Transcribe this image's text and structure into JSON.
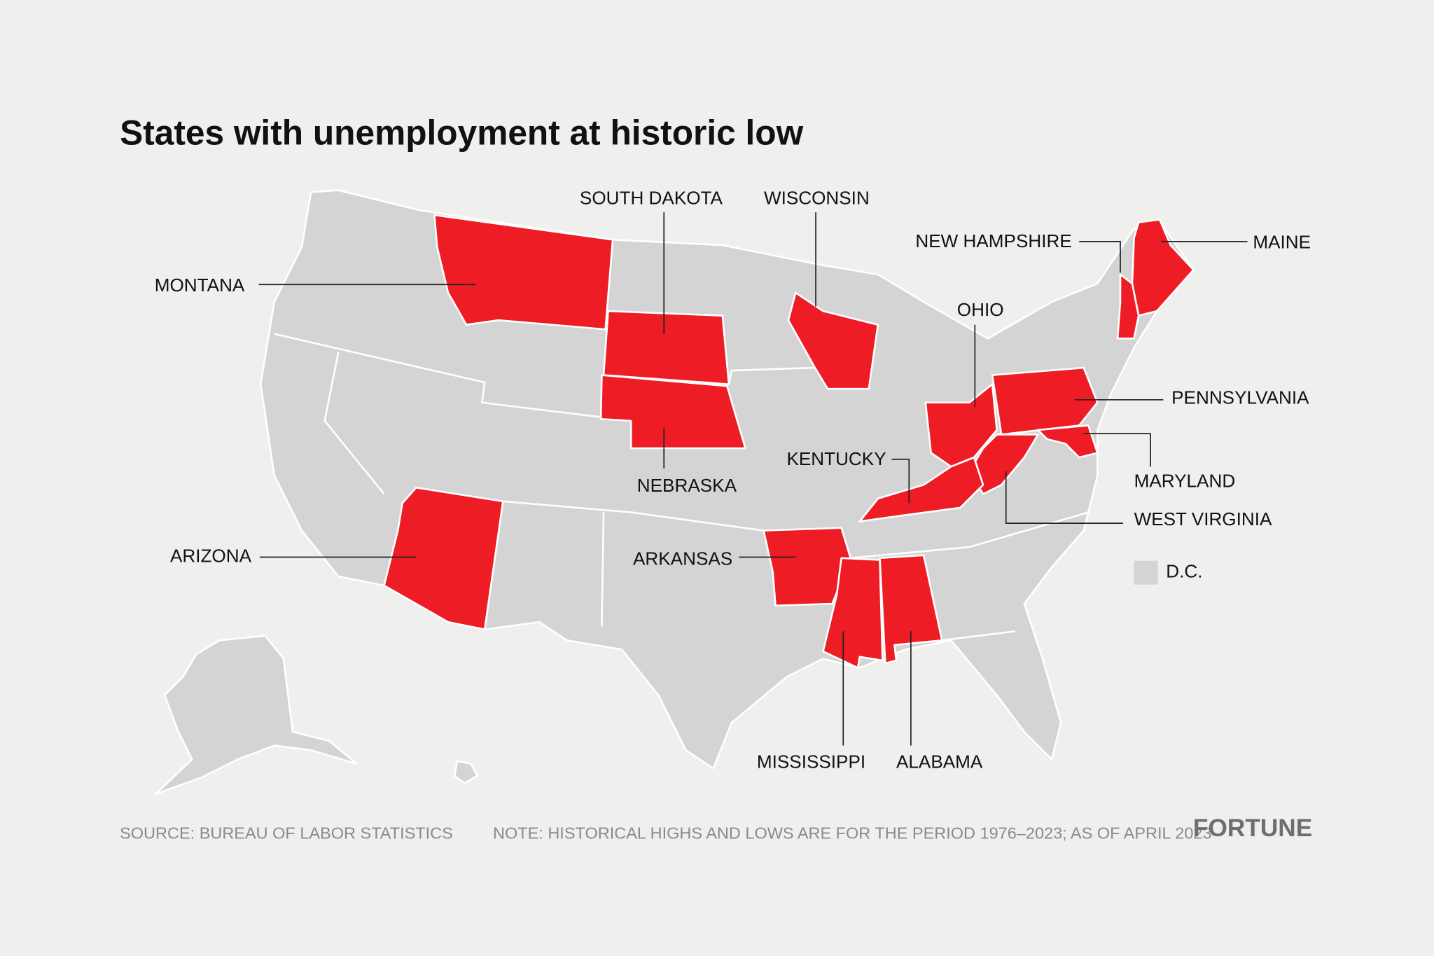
{
  "title": "States with unemployment at historic low",
  "states": [
    "MONTANA",
    "SOUTH DAKOTA",
    "WISCONSIN",
    "NEW HAMPSHIRE",
    "MAINE",
    "OHIO",
    "PENNSYLVANIA",
    "MARYLAND",
    "WEST VIRGINIA",
    "KENTUCKY",
    "NEBRASKA",
    "ARIZONA",
    "ARKANSAS",
    "MISSISSIPPI",
    "ALABAMA"
  ],
  "legend": {
    "label": "D.C."
  },
  "footer": {
    "source": "SOURCE: BUREAU OF LABOR STATISTICS",
    "note": "NOTE: HISTORICAL HIGHS AND LOWS ARE FOR THE PERIOD 1976–2023; AS OF APRIL 2023",
    "brand": "FORTUNE"
  }
}
